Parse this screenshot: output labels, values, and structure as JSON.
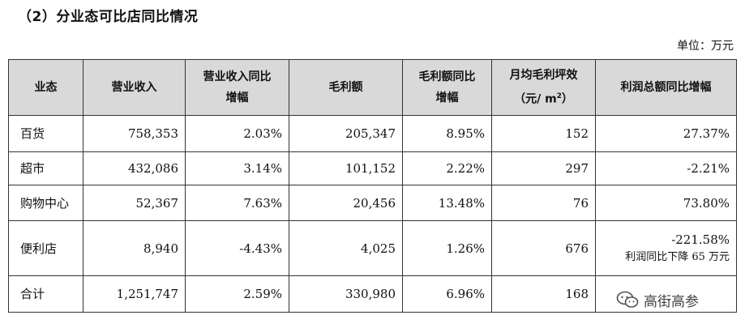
{
  "heading": "（2）分业态可比店同比情况",
  "unit": "单位：万元",
  "table": {
    "headers": {
      "format": "业态",
      "revenue": "营业收入",
      "revenue_yoy": [
        "营业收入同比",
        "增幅"
      ],
      "gross_profit": "毛利额",
      "gp_yoy": [
        "毛利额同比",
        "增幅"
      ],
      "gp_per_ping": [
        "月均毛利坪效",
        "（元/ m",
        "2",
        "）"
      ],
      "profit_yoy": "利润总额同比增幅"
    },
    "rows": [
      {
        "format": "百货",
        "revenue": "758,353",
        "revenue_yoy": "2.03%",
        "gross_profit": "205,347",
        "gp_yoy": "8.95%",
        "gp_per_ping": "152",
        "profit_yoy": "27.37%"
      },
      {
        "format": "超市",
        "revenue": "432,086",
        "revenue_yoy": "3.14%",
        "gross_profit": "101,152",
        "gp_yoy": "2.22%",
        "gp_per_ping": "297",
        "profit_yoy": "-2.21%"
      },
      {
        "format": "购物中心",
        "revenue": "52,367",
        "revenue_yoy": "7.63%",
        "gross_profit": "20,456",
        "gp_yoy": "13.48%",
        "gp_per_ping": "76",
        "profit_yoy": "73.80%"
      },
      {
        "format": "便利店",
        "revenue": "8,940",
        "revenue_yoy": "-4.43%",
        "gross_profit": "4,025",
        "gp_yoy": "1.26%",
        "gp_per_ping": "676",
        "profit_yoy": "-221.58%",
        "profit_note": "利润同比下降 65 万元"
      },
      {
        "format": "合计",
        "revenue": "1,251,747",
        "revenue_yoy": "2.59%",
        "gross_profit": "330,980",
        "gp_yoy": "6.96%",
        "gp_per_ping": "168",
        "profit_yoy": ""
      }
    ]
  },
  "watermark": {
    "text": "高街高参",
    "icon": "wechat-icon"
  }
}
